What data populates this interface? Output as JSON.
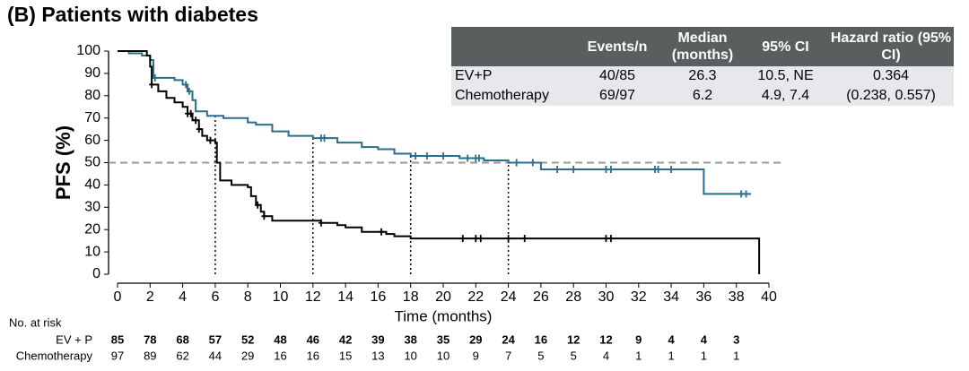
{
  "title": "(B) Patients with diabetes",
  "summary_table": {
    "header": [
      "Events/n",
      "Median (months)",
      "95% CI",
      "Hazard ratio (95% CI)"
    ],
    "rows": [
      [
        "EV+P",
        "40/85",
        "26.3",
        "10.5, NE",
        "0.364"
      ],
      [
        "Chemotherapy",
        "69/97",
        "6.2",
        "4.9, 7.4",
        "(0.238, 0.557)"
      ]
    ]
  },
  "chart_data": {
    "type": "step",
    "y_label": "PFS (%)",
    "x_label": "Time (months)",
    "xlim": [
      0,
      40
    ],
    "ylim": [
      0,
      100
    ],
    "xticks": [
      0,
      2,
      4,
      6,
      8,
      10,
      12,
      14,
      16,
      18,
      20,
      22,
      24,
      26,
      28,
      30,
      32,
      34,
      36,
      38,
      40
    ],
    "yticks": [
      0,
      10,
      20,
      30,
      40,
      50,
      60,
      70,
      80,
      90,
      100
    ],
    "median_line": 50,
    "landmarks": [
      6,
      12,
      18,
      24
    ],
    "series": [
      {
        "name": "EV + P",
        "color": "#2a6d8c",
        "x": [
          0,
          0.7,
          1.5,
          2,
          2.2,
          3.5,
          4,
          4.3,
          4.6,
          4.8,
          5.5,
          6.5,
          8,
          8.5,
          9.5,
          10.5,
          12,
          13.5,
          15,
          16,
          17,
          18,
          21,
          22.5,
          24,
          26,
          36,
          38.9
        ],
        "values": [
          100,
          99,
          98,
          96,
          88,
          87,
          85,
          82,
          78,
          73,
          71,
          70,
          68,
          67,
          64,
          62,
          61,
          59,
          57,
          56,
          54,
          53,
          52,
          51,
          50,
          47,
          36,
          36
        ],
        "censor_x": [
          2.3,
          4.2,
          4.4,
          12.5,
          12.7,
          18.3,
          19,
          20,
          21.5,
          22,
          22.2,
          24.5,
          25.5,
          27,
          28,
          30,
          30.3,
          33,
          33.2,
          34,
          38.3,
          38.6
        ],
        "at_risk": [
          85,
          78,
          68,
          57,
          52,
          48,
          46,
          42,
          39,
          38,
          35,
          29,
          24,
          16,
          12,
          12,
          9,
          4,
          4,
          3
        ]
      },
      {
        "name": "Chemotherapy",
        "color": "#000000",
        "x": [
          0,
          1.8,
          2,
          2.1,
          2.5,
          3,
          3.5,
          4,
          4.3,
          4.6,
          5,
          5.2,
          5.5,
          6,
          6.1,
          6.3,
          7,
          8,
          8.2,
          8.5,
          8.8,
          9,
          9.5,
          12.5,
          13.5,
          14,
          15,
          16.5,
          17,
          18,
          39.4
        ],
        "values": [
          100,
          98,
          93,
          85,
          82,
          79,
          77,
          75,
          72,
          69,
          65,
          62,
          60,
          59,
          50,
          42,
          40,
          39,
          35,
          31,
          28,
          26,
          24,
          23,
          22,
          21,
          19,
          18,
          17,
          16,
          0
        ],
        "censor_x": [
          2.1,
          4.3,
          4.5,
          4.8,
          5,
          5.7,
          8.6,
          9,
          12.5,
          16.2,
          21.2,
          22,
          22.3,
          24,
          25,
          30,
          30.3
        ],
        "at_risk": [
          97,
          89,
          62,
          44,
          29,
          16,
          16,
          15,
          13,
          10,
          10,
          9,
          7,
          5,
          5,
          4,
          1,
          1,
          1,
          1
        ]
      }
    ],
    "risk_label": "No. at risk"
  }
}
